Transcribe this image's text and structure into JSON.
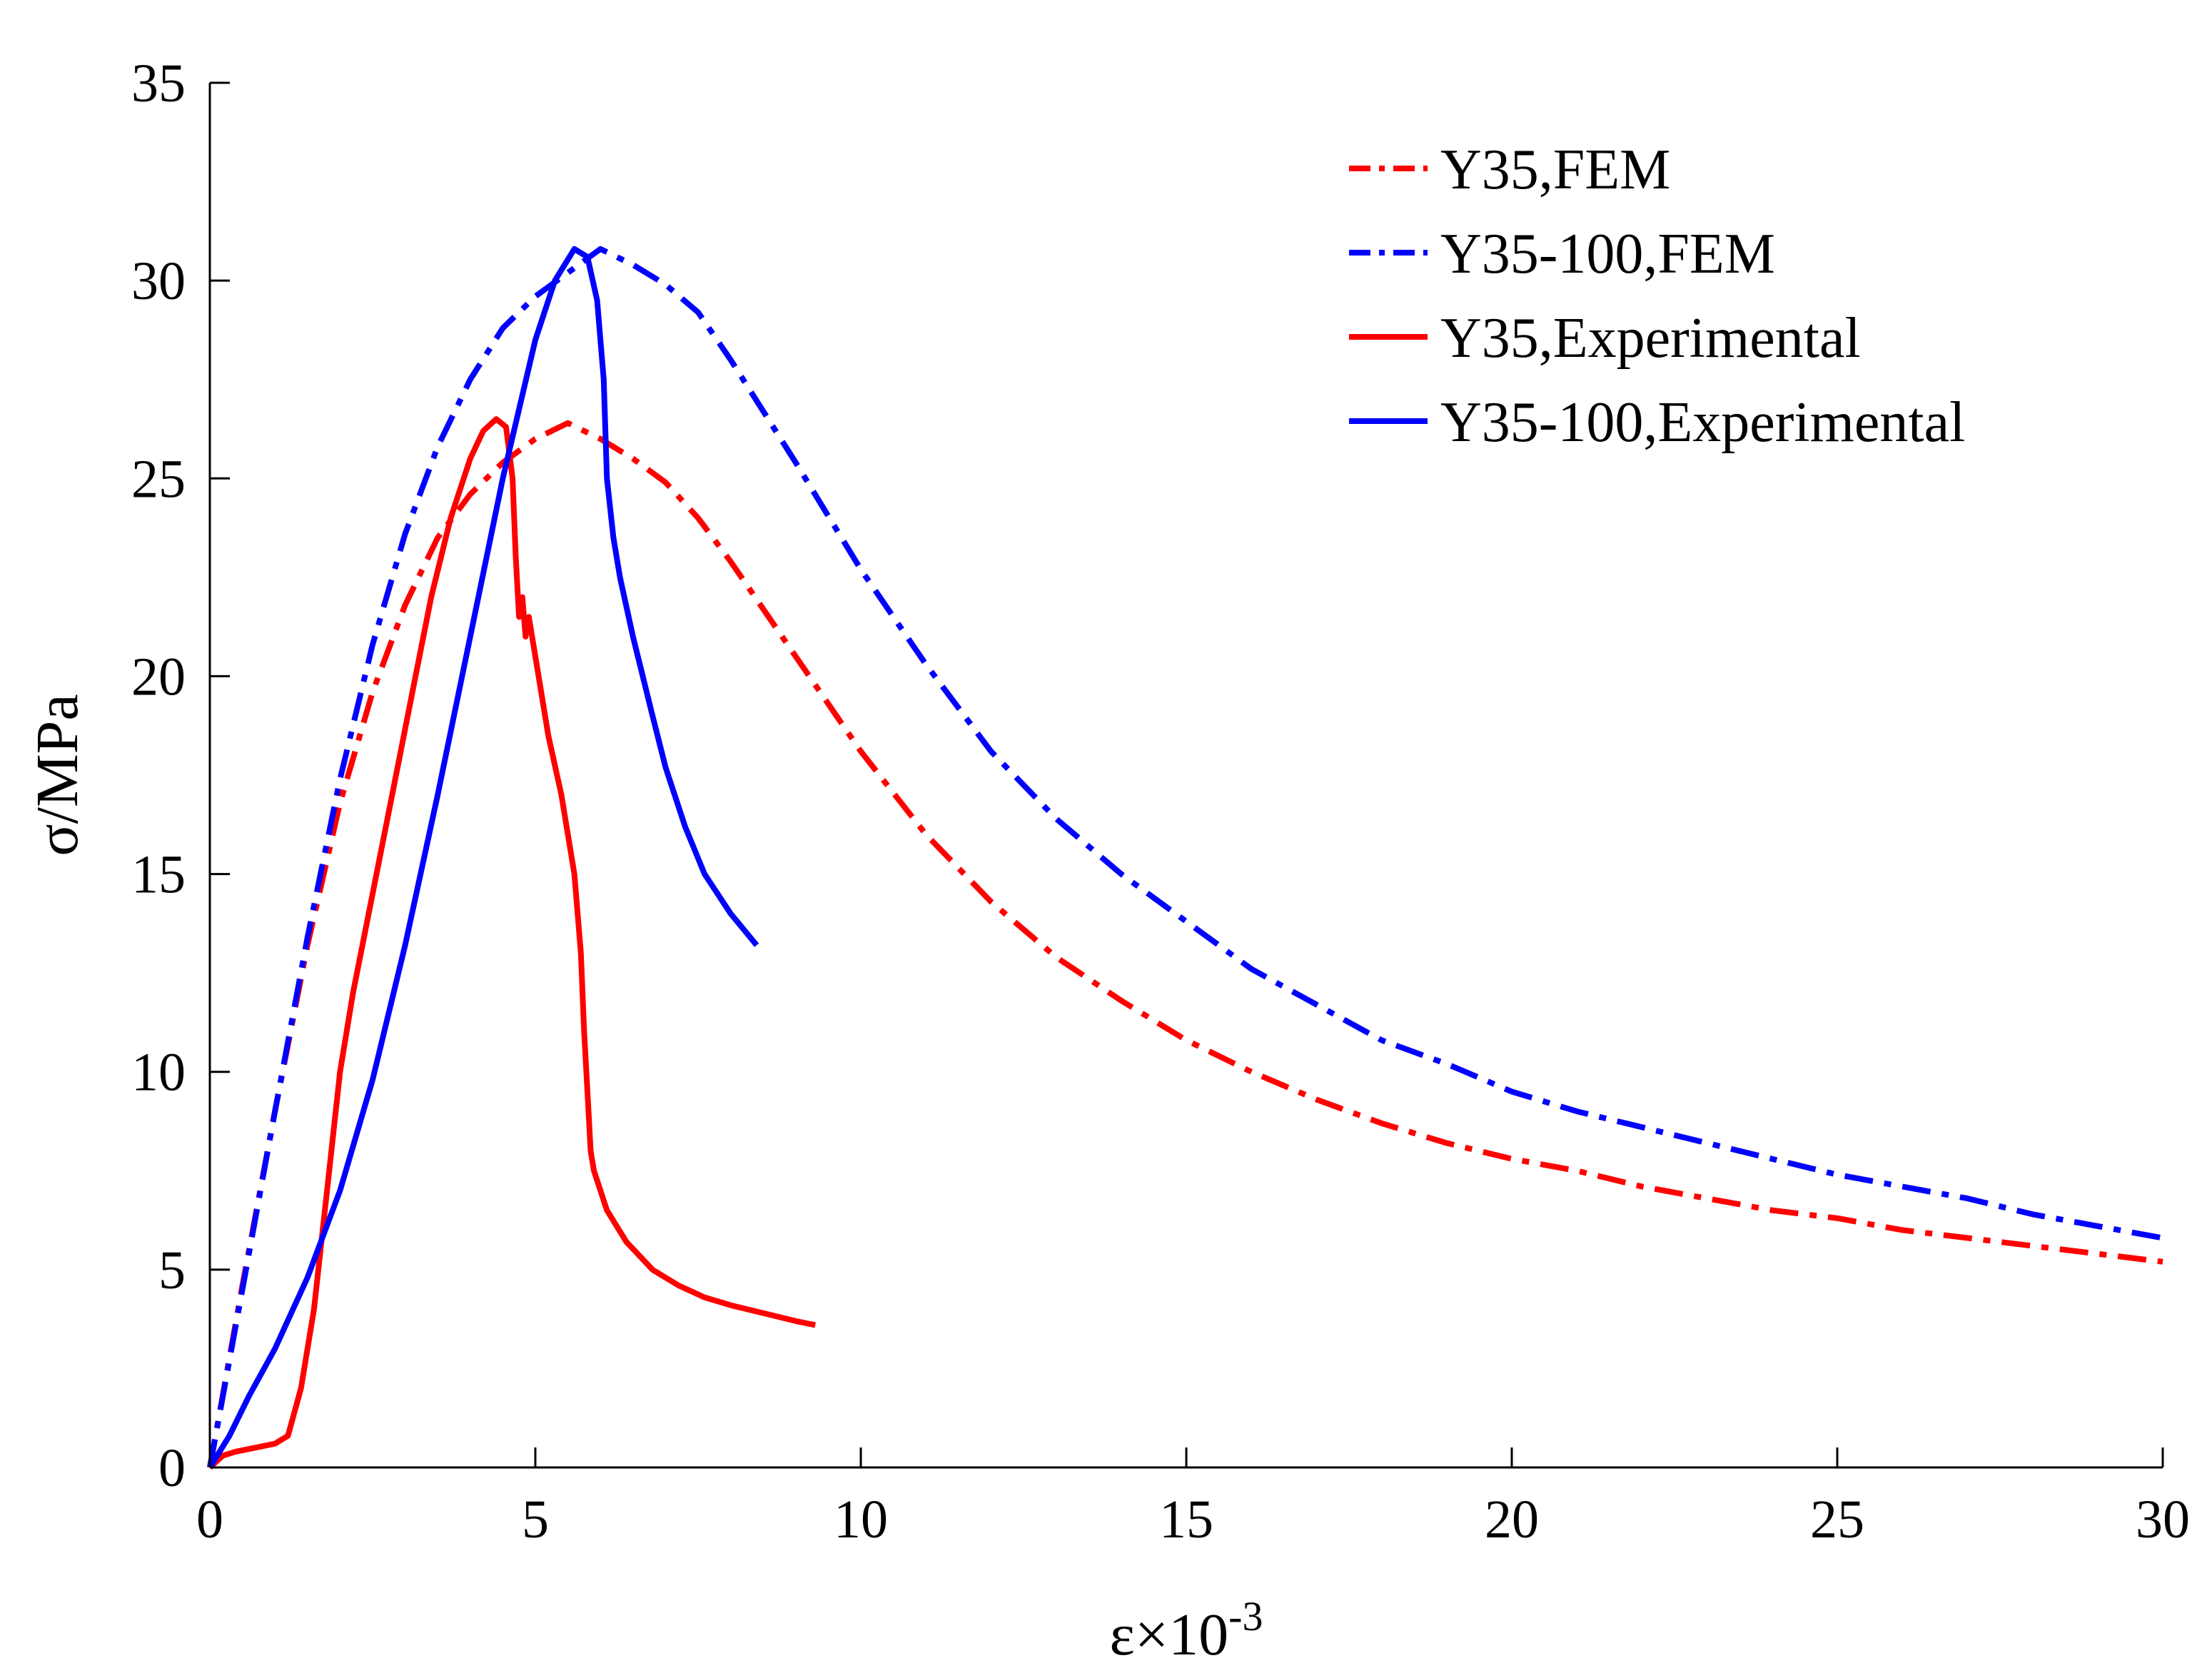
{
  "chart_data": {
    "type": "line",
    "title": "",
    "xlabel": "ε×10",
    "xlabel_superscript": "-3",
    "ylabel": "σ/MPa",
    "xlim": [
      0,
      30
    ],
    "ylim": [
      0,
      35
    ],
    "xticks": [
      0,
      5,
      10,
      15,
      20,
      25,
      30
    ],
    "yticks": [
      0,
      5,
      10,
      15,
      20,
      25,
      30,
      35
    ],
    "xtick_labels": [
      "0",
      "5",
      "10",
      "15",
      "20",
      "25",
      "30"
    ],
    "ytick_labels": [
      "0",
      "5",
      "10",
      "15",
      "20",
      "25",
      "30",
      "35"
    ],
    "grid": false,
    "legend_position": "top-right",
    "series": [
      {
        "name": "Y35,FEM",
        "color": "#ff0000",
        "style": "dashdot",
        "x": [
          0,
          0.5,
          1,
          1.5,
          2,
          2.5,
          3,
          3.5,
          4,
          4.5,
          5,
          5.5,
          6,
          6.5,
          7,
          7.5,
          8,
          9,
          10,
          11,
          12,
          13,
          14,
          15,
          16,
          17,
          18,
          19,
          20,
          21,
          22,
          23,
          24,
          25,
          26,
          27,
          28,
          29,
          30
        ],
        "y": [
          0,
          4.6,
          9.0,
          13.2,
          16.8,
          19.6,
          21.8,
          23.5,
          24.6,
          25.4,
          26.0,
          26.4,
          26.0,
          25.5,
          24.9,
          24.0,
          22.9,
          20.5,
          18.1,
          16.0,
          14.3,
          12.9,
          11.8,
          10.8,
          10.0,
          9.3,
          8.7,
          8.2,
          7.8,
          7.5,
          7.1,
          6.8,
          6.5,
          6.3,
          6.0,
          5.8,
          5.6,
          5.4,
          5.2
        ]
      },
      {
        "name": "Y35-100,FEM",
        "color": "#0000ff",
        "style": "dashdot",
        "x": [
          0,
          0.5,
          1,
          1.5,
          2,
          2.5,
          3,
          3.5,
          4,
          4.5,
          5,
          5.5,
          6,
          6.5,
          7,
          7.5,
          8,
          9,
          10,
          11,
          12,
          13,
          14,
          15,
          16,
          17,
          18,
          19,
          20,
          21,
          22,
          23,
          24,
          25,
          26,
          27,
          28,
          29,
          30
        ],
        "y": [
          0,
          4.5,
          9.0,
          13.4,
          17.4,
          20.8,
          23.6,
          25.8,
          27.5,
          28.8,
          29.6,
          30.2,
          30.8,
          30.4,
          29.9,
          29.2,
          28.0,
          25.4,
          22.7,
          20.3,
          18.1,
          16.4,
          15.0,
          13.8,
          12.6,
          11.7,
          10.8,
          10.2,
          9.5,
          9.0,
          8.6,
          8.2,
          7.8,
          7.4,
          7.1,
          6.8,
          6.4,
          6.1,
          5.8
        ]
      },
      {
        "name": "Y35,Experimental",
        "color": "#ff0000",
        "style": "solid",
        "x": [
          0,
          0.2,
          0.4,
          0.7,
          1.0,
          1.2,
          1.4,
          1.6,
          1.8,
          2.0,
          2.2,
          2.5,
          2.8,
          3.1,
          3.4,
          3.7,
          4.0,
          4.2,
          4.4,
          4.55,
          4.65,
          4.7,
          4.75,
          4.8,
          4.85,
          4.9,
          5.0,
          5.1,
          5.2,
          5.4,
          5.6,
          5.7,
          5.75,
          5.8,
          5.85,
          5.9,
          6.1,
          6.4,
          6.8,
          7.2,
          7.6,
          8.0,
          8.5,
          9.0,
          9.3
        ],
        "y": [
          0,
          0.3,
          0.4,
          0.5,
          0.6,
          0.8,
          2.0,
          4.0,
          7.0,
          10.0,
          12.0,
          14.5,
          17.0,
          19.5,
          22.0,
          24.0,
          25.5,
          26.2,
          26.5,
          26.3,
          25.0,
          23.0,
          21.5,
          22.0,
          21.0,
          21.5,
          20.5,
          19.5,
          18.5,
          17.0,
          15.0,
          13.0,
          11.0,
          9.5,
          8.0,
          7.5,
          6.5,
          5.7,
          5.0,
          4.6,
          4.3,
          4.1,
          3.9,
          3.7,
          3.6
        ]
      },
      {
        "name": "Y35-100,Experimental",
        "color": "#0000ff",
        "style": "solid",
        "x": [
          0,
          0.3,
          0.6,
          1.0,
          1.5,
          2.0,
          2.5,
          3.0,
          3.5,
          4.0,
          4.5,
          5.0,
          5.3,
          5.6,
          5.8,
          5.95,
          6.05,
          6.1,
          6.2,
          6.3,
          6.5,
          6.8,
          7.0,
          7.3,
          7.6,
          8.0,
          8.4
        ],
        "y": [
          0,
          0.8,
          1.8,
          3.0,
          4.8,
          7.0,
          9.8,
          13.2,
          17.0,
          21.0,
          25.0,
          28.5,
          30.0,
          30.8,
          30.6,
          29.5,
          27.5,
          25.0,
          23.5,
          22.5,
          21.0,
          19.0,
          17.7,
          16.2,
          15.0,
          14.0,
          13.2
        ]
      }
    ]
  }
}
